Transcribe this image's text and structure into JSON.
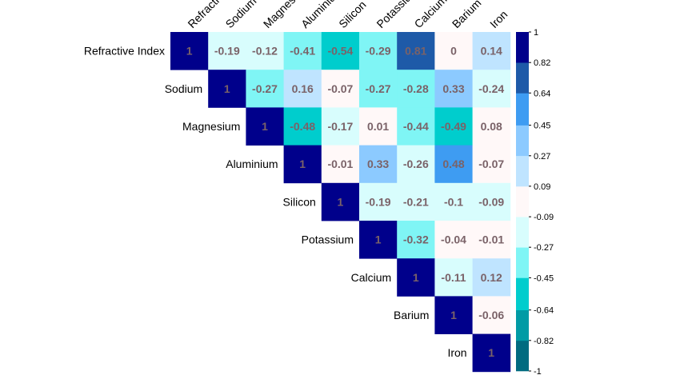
{
  "chart_data": {
    "type": "heatmap",
    "layout": "upper-triangle correlation matrix",
    "variables": [
      "Refractive Index",
      "Sodium",
      "Magnesium",
      "Aluminium",
      "Silicon",
      "Potassium",
      "Calcium",
      "Barium",
      "Iron"
    ],
    "column_labels": [
      "Refractive Index",
      "Sodium",
      "Magnesium",
      "Aluminium",
      "Silicon",
      "Potassium",
      "Calcium",
      "Barium",
      "Iron"
    ],
    "matrix": [
      [
        "1",
        "-0.19",
        "-0.12",
        "-0.41",
        "-0.54",
        "-0.29",
        "0.81",
        "0",
        "0.14"
      ],
      [
        null,
        "1",
        "-0.27",
        "0.16",
        "-0.07",
        "-0.27",
        "-0.28",
        "0.33",
        "-0.24"
      ],
      [
        null,
        null,
        "1",
        "-0.48",
        "-0.17",
        "0.01",
        "-0.44",
        "-0.49",
        "0.08"
      ],
      [
        null,
        null,
        null,
        "1",
        "-0.01",
        "0.33",
        "-0.26",
        "0.48",
        "-0.07"
      ],
      [
        null,
        null,
        null,
        null,
        "1",
        "-0.19",
        "-0.21",
        "-0.1",
        "-0.09"
      ],
      [
        null,
        null,
        null,
        null,
        null,
        "1",
        "-0.32",
        "-0.04",
        "-0.01"
      ],
      [
        null,
        null,
        null,
        null,
        null,
        null,
        "1",
        "-0.11",
        "0.12"
      ],
      [
        null,
        null,
        null,
        null,
        null,
        null,
        null,
        "1",
        "-0.06"
      ],
      [
        null,
        null,
        null,
        null,
        null,
        null,
        null,
        null,
        "1"
      ]
    ],
    "value_range": [
      -1,
      1
    ],
    "colorbar": {
      "position": "right",
      "tick_labels": [
        "1",
        "0.82",
        "0.64",
        "0.45",
        "0.27",
        "0.09",
        "-0.09",
        "-0.27",
        "-0.45",
        "-0.64",
        "-0.82",
        "-1"
      ],
      "bins": [
        {
          "min": -1.0,
          "max": -0.82,
          "color": "#006b80"
        },
        {
          "min": -0.82,
          "max": -0.64,
          "color": "#009ba5"
        },
        {
          "min": -0.64,
          "max": -0.45,
          "color": "#00cdcd"
        },
        {
          "min": -0.45,
          "max": -0.27,
          "color": "#7ff5f5"
        },
        {
          "min": -0.27,
          "max": -0.09,
          "color": "#d8fdfd"
        },
        {
          "min": -0.09,
          "max": 0.09,
          "color": "#fff8f8"
        },
        {
          "min": 0.09,
          "max": 0.27,
          "color": "#bfe4ff"
        },
        {
          "min": 0.27,
          "max": 0.45,
          "color": "#8ccaff"
        },
        {
          "min": 0.45,
          "max": 0.64,
          "color": "#3e9cf2"
        },
        {
          "min": 0.64,
          "max": 0.82,
          "color": "#1e5aa8"
        },
        {
          "min": 0.82,
          "max": 1.0,
          "color": "#00008b"
        }
      ]
    },
    "grid": false,
    "legend": "right"
  }
}
